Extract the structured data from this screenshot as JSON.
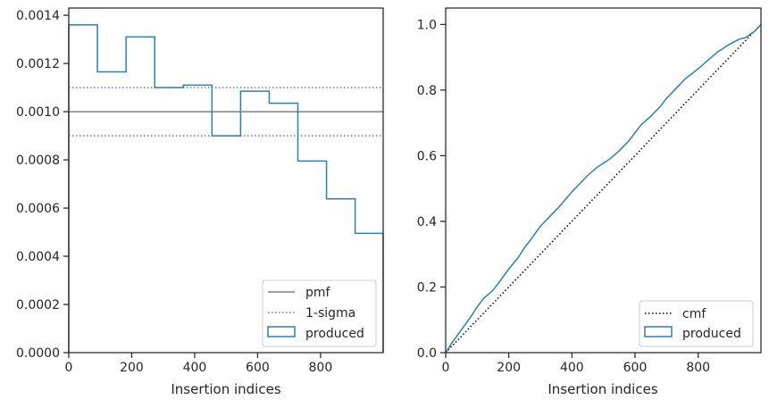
{
  "chart_data": [
    {
      "type": "step",
      "xlabel": "Insertion indices",
      "ylabel": "",
      "xlim": [
        0,
        999
      ],
      "ylim": [
        0,
        0.00143
      ],
      "xticks": [
        0,
        200,
        400,
        600,
        800
      ],
      "xtick_labels": [
        "0",
        "200",
        "400",
        "600",
        "800"
      ],
      "yticks": [
        0,
        0.0002,
        0.0004,
        0.0006,
        0.0008,
        0.001,
        0.0012,
        0.0014
      ],
      "ytick_labels": [
        "0.0000",
        "0.0002",
        "0.0004",
        "0.0006",
        "0.0008",
        "0.0010",
        "0.0012",
        "0.0014"
      ],
      "reference_lines": [
        {
          "name": "pmf",
          "y": 0.001,
          "style": "solid",
          "color": "#808080"
        },
        {
          "name": "1-sigma",
          "y": 0.0011,
          "style": "dotted",
          "color": "#808080"
        },
        {
          "name": "1-sigma",
          "y": 0.0009,
          "style": "dotted",
          "color": "#808080"
        }
      ],
      "series": [
        {
          "name": "produced",
          "color": "#2e7fb4",
          "bin_edges": [
            0,
            91,
            182,
            273,
            364,
            455,
            546,
            637,
            728,
            819,
            910,
            999
          ],
          "values": [
            0.00136,
            0.001165,
            0.00131,
            0.0011,
            0.00111,
            0.0009,
            0.001085,
            0.001035,
            0.000795,
            0.000638,
            0.000495
          ]
        }
      ],
      "legend": {
        "position": "lower-right",
        "entries": [
          {
            "label": "pmf",
            "kind": "solid-line",
            "color": "#808080"
          },
          {
            "label": "1-sigma",
            "kind": "dotted-line",
            "color": "#808080"
          },
          {
            "label": "produced",
            "kind": "patch",
            "color": "#2e7fb4"
          }
        ]
      },
      "grid": false
    },
    {
      "type": "line",
      "xlabel": "Insertion indices",
      "ylabel": "",
      "xlim": [
        0,
        999
      ],
      "ylim": [
        0,
        1.05
      ],
      "xticks": [
        0,
        200,
        400,
        600,
        800
      ],
      "xtick_labels": [
        "0",
        "200",
        "400",
        "600",
        "800"
      ],
      "yticks": [
        0,
        0.2,
        0.4,
        0.6,
        0.8,
        1.0
      ],
      "ytick_labels": [
        "0.0",
        "0.2",
        "0.4",
        "0.6",
        "0.8",
        "1.0"
      ],
      "series": [
        {
          "name": "cmf",
          "style": "dotted",
          "color": "#000000",
          "x": [
            0,
            999
          ],
          "y": [
            0,
            1
          ]
        },
        {
          "name": "produced",
          "style": "solid",
          "color": "#2e7fb4",
          "x": [
            0,
            20,
            50,
            80,
            100,
            120,
            150,
            170,
            200,
            230,
            250,
            270,
            300,
            330,
            360,
            400,
            430,
            450,
            480,
            520,
            550,
            580,
            600,
            620,
            650,
            680,
            700,
            730,
            760,
            800,
            830,
            860,
            900,
            930,
            950,
            980,
            999
          ],
          "y": [
            0,
            0.03,
            0.07,
            0.11,
            0.14,
            0.165,
            0.19,
            0.215,
            0.255,
            0.29,
            0.32,
            0.345,
            0.385,
            0.415,
            0.445,
            0.49,
            0.52,
            0.54,
            0.565,
            0.59,
            0.615,
            0.645,
            0.67,
            0.695,
            0.72,
            0.75,
            0.775,
            0.805,
            0.835,
            0.865,
            0.89,
            0.915,
            0.94,
            0.955,
            0.96,
            0.98,
            1.0
          ]
        }
      ],
      "legend": {
        "position": "lower-right",
        "entries": [
          {
            "label": "cmf",
            "kind": "dotted-line",
            "color": "#000000"
          },
          {
            "label": "produced",
            "kind": "patch",
            "color": "#2e7fb4"
          }
        ]
      },
      "grid": false
    }
  ]
}
